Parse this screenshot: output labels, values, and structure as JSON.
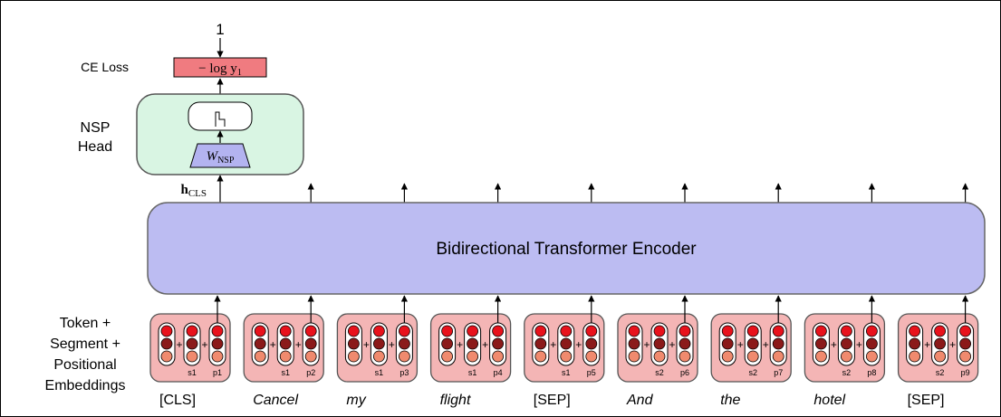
{
  "target_value": "1",
  "loss": {
    "label": "CE Loss",
    "formula": "− log y",
    "formula_sub": "1",
    "color": "#f07b80"
  },
  "nsp_head": {
    "label_line1": "NSP",
    "label_line2": "Head",
    "weight_label": "W",
    "weight_sub": "NSP",
    "fill": "#d9f5e3",
    "weight_fill": "#b3b3f0"
  },
  "hidden_cls": {
    "symbol": "h",
    "sub": "CLS"
  },
  "encoder": {
    "label": "Bidirectional Transformer Encoder",
    "fill": "#bcbcf2"
  },
  "embeddings_label": [
    "Token +",
    "Segment +",
    "Positional",
    "Embeddings"
  ],
  "embedding_colors": {
    "block_fill": "#f4b5b5",
    "dot_top": "#e8121c",
    "dot_mid": "#8b1a1a",
    "dot_bot": "#f08a6e"
  },
  "tokens": [
    {
      "word": "[CLS]",
      "italic": false,
      "seg": "",
      "pos": ""
    },
    {
      "word": "Cancel",
      "italic": true,
      "seg": "s1",
      "pos": "p2"
    },
    {
      "word": "my",
      "italic": true,
      "seg": "s1",
      "pos": "p3"
    },
    {
      "word": "flight",
      "italic": true,
      "seg": "s1",
      "pos": "p4"
    },
    {
      "word": "[SEP]",
      "italic": false,
      "seg": "s1",
      "pos": "p5"
    },
    {
      "word": "And",
      "italic": true,
      "seg": "s2",
      "pos": "p6"
    },
    {
      "word": "the",
      "italic": true,
      "seg": "s2",
      "pos": "p7"
    },
    {
      "word": "hotel",
      "italic": true,
      "seg": "s2",
      "pos": "p8"
    },
    {
      "word": "[SEP]",
      "italic": false,
      "seg": "s2",
      "pos": "p9"
    }
  ],
  "first_token_labels": {
    "seg": "s1",
    "pos": "p1"
  }
}
